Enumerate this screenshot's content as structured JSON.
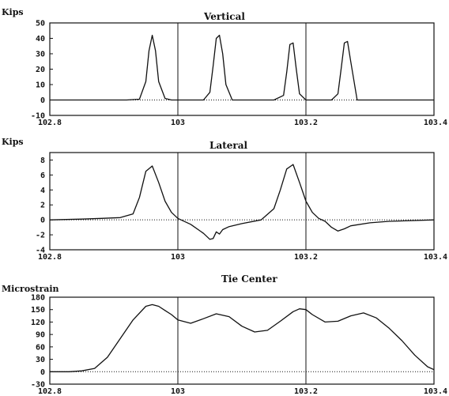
{
  "chart_data": [
    {
      "type": "line",
      "title": "Vertical",
      "ylabel": "Kips",
      "xlim": [
        102.8,
        103.4
      ],
      "ylim": [
        -10,
        50
      ],
      "x_ticks": [
        "102.8",
        "103",
        "103.2",
        "103.4"
      ],
      "y_ticks": [
        "50",
        "40",
        "30",
        "20",
        "10",
        "0",
        "-10"
      ],
      "y_tick_values": [
        50,
        40,
        30,
        20,
        10,
        0,
        -10
      ],
      "gridlines_x": [
        103.0,
        103.2
      ],
      "zero_line": "dotted",
      "series": [
        {
          "x": [
            102.8,
            102.92,
            102.94,
            102.95,
            102.955,
            102.96,
            102.965,
            102.97,
            102.98,
            102.99,
            103.02,
            103.04,
            103.05,
            103.055,
            103.06,
            103.065,
            103.07,
            103.075,
            103.085,
            103.1,
            103.15,
            103.165,
            103.17,
            103.175,
            103.18,
            103.185,
            103.19,
            103.2,
            103.23,
            103.24,
            103.25,
            103.255,
            103.26,
            103.265,
            103.27,
            103.28,
            103.4
          ],
          "y": [
            0,
            0,
            0.5,
            12,
            32,
            42,
            32,
            12,
            1,
            0,
            0,
            0,
            5,
            22,
            40,
            42,
            30,
            10,
            0,
            0,
            0,
            3,
            18,
            36,
            37,
            20,
            4,
            0,
            0,
            0,
            4,
            20,
            37,
            38,
            25,
            0,
            0
          ]
        }
      ]
    },
    {
      "type": "line",
      "title": "Lateral",
      "ylabel": "Kips",
      "xlim": [
        102.8,
        103.4
      ],
      "ylim": [
        -4,
        9
      ],
      "x_ticks": [
        "102.8",
        "103",
        "103.2",
        "103.4"
      ],
      "y_ticks": [
        "8",
        "6",
        "4",
        "2",
        "0",
        "-2",
        "-4"
      ],
      "y_tick_values": [
        8,
        6,
        4,
        2,
        0,
        -2,
        -4
      ],
      "gridlines_x": [
        103.0,
        103.2
      ],
      "zero_line": "dotted",
      "series": [
        {
          "x": [
            102.8,
            102.85,
            102.88,
            102.91,
            102.93,
            102.94,
            102.95,
            102.96,
            102.97,
            102.98,
            102.99,
            103.0,
            103.02,
            103.04,
            103.05,
            103.055,
            103.06,
            103.065,
            103.07,
            103.08,
            103.1,
            103.13,
            103.15,
            103.16,
            103.17,
            103.18,
            103.19,
            103.2,
            103.21,
            103.22,
            103.23,
            103.24,
            103.25,
            103.26,
            103.27,
            103.3,
            103.33,
            103.4
          ],
          "y": [
            0,
            0.1,
            0.2,
            0.3,
            0.8,
            3.0,
            6.5,
            7.2,
            5.0,
            2.5,
            1.0,
            0.2,
            -0.6,
            -1.8,
            -2.6,
            -2.5,
            -1.6,
            -1.9,
            -1.3,
            -0.9,
            -0.5,
            0.0,
            1.5,
            4.0,
            6.8,
            7.4,
            5.0,
            2.5,
            1.0,
            0.2,
            -0.2,
            -1.0,
            -1.5,
            -1.2,
            -0.8,
            -0.4,
            -0.2,
            0
          ]
        }
      ]
    },
    {
      "type": "line",
      "title": "Tie Center",
      "ylabel": "Microstrain",
      "xlim": [
        102.8,
        103.4
      ],
      "ylim": [
        -30,
        180
      ],
      "x_ticks": [
        "102.8",
        "103",
        "103.2",
        "103.4"
      ],
      "y_ticks": [
        "180",
        "150",
        "120",
        "90",
        "60",
        "30",
        "0",
        "-30"
      ],
      "y_tick_values": [
        180,
        150,
        120,
        90,
        60,
        30,
        0,
        -30
      ],
      "gridlines_x": [
        103.0,
        103.2
      ],
      "zero_line": "dotted",
      "series": [
        {
          "x": [
            102.8,
            102.83,
            102.85,
            102.87,
            102.89,
            102.91,
            102.93,
            102.95,
            102.96,
            102.97,
            102.98,
            102.99,
            103.0,
            103.02,
            103.04,
            103.06,
            103.08,
            103.1,
            103.12,
            103.14,
            103.16,
            103.18,
            103.19,
            103.2,
            103.21,
            103.23,
            103.25,
            103.27,
            103.29,
            103.31,
            103.33,
            103.35,
            103.37,
            103.39,
            103.4
          ],
          "y": [
            0,
            0,
            2,
            8,
            35,
            80,
            125,
            158,
            162,
            158,
            148,
            138,
            125,
            117,
            128,
            140,
            133,
            110,
            96,
            100,
            122,
            145,
            152,
            150,
            138,
            120,
            122,
            135,
            142,
            130,
            105,
            75,
            40,
            12,
            5
          ]
        }
      ]
    }
  ]
}
